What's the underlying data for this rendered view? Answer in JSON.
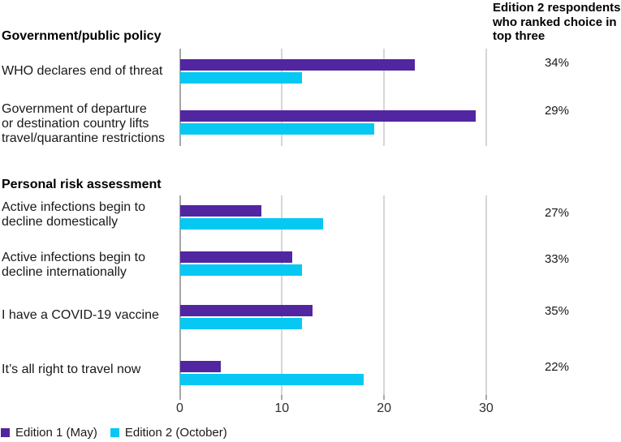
{
  "right_column": {
    "header_lines": [
      "Edition 2 respondents",
      "who ranked choice in",
      "top three"
    ]
  },
  "chart_data": {
    "type": "bar",
    "orientation": "horizontal",
    "title": "",
    "xlabel": "",
    "ylabel": "",
    "xlim": [
      0,
      30
    ],
    "x_ticks": [
      "0",
      "10",
      "20",
      "30"
    ],
    "grid": "vertical",
    "legend_position": "bottom-left",
    "colors": {
      "edition1": "#5226A0",
      "edition2": "#07C8F2"
    },
    "series_names": [
      "Edition 1 (May)",
      "Edition 2 (October)"
    ],
    "sections": [
      {
        "heading": "Government/public policy",
        "rows": [
          {
            "label_lines": [
              "WHO declares end of threat"
            ],
            "edition1": 23,
            "edition2": 12,
            "pct": "34%"
          },
          {
            "label_lines": [
              "Government of departure",
              "or destination country lifts",
              "travel/quarantine restrictions"
            ],
            "edition1": 29,
            "edition2": 19,
            "pct": "29%"
          }
        ]
      },
      {
        "heading": "Personal risk assessment",
        "rows": [
          {
            "label_lines": [
              "Active infections begin to",
              "decline domestically"
            ],
            "edition1": 8,
            "edition2": 14,
            "pct": "27%"
          },
          {
            "label_lines": [
              "Active infections begin to",
              "decline internationally"
            ],
            "edition1": 11,
            "edition2": 12,
            "pct": "33%"
          },
          {
            "label_lines": [
              "I have a COVID-19 vaccine"
            ],
            "edition1": 13,
            "edition2": 12,
            "pct": "35%"
          },
          {
            "label_lines": [
              "It’s all right to travel now"
            ],
            "edition1": 4,
            "edition2": 18,
            "pct": "22%"
          }
        ]
      }
    ],
    "legend": [
      {
        "label": "Edition 1 (May)",
        "color": "#5226A0"
      },
      {
        "label": "Edition 2 (October)",
        "color": "#07C8F2"
      }
    ]
  }
}
